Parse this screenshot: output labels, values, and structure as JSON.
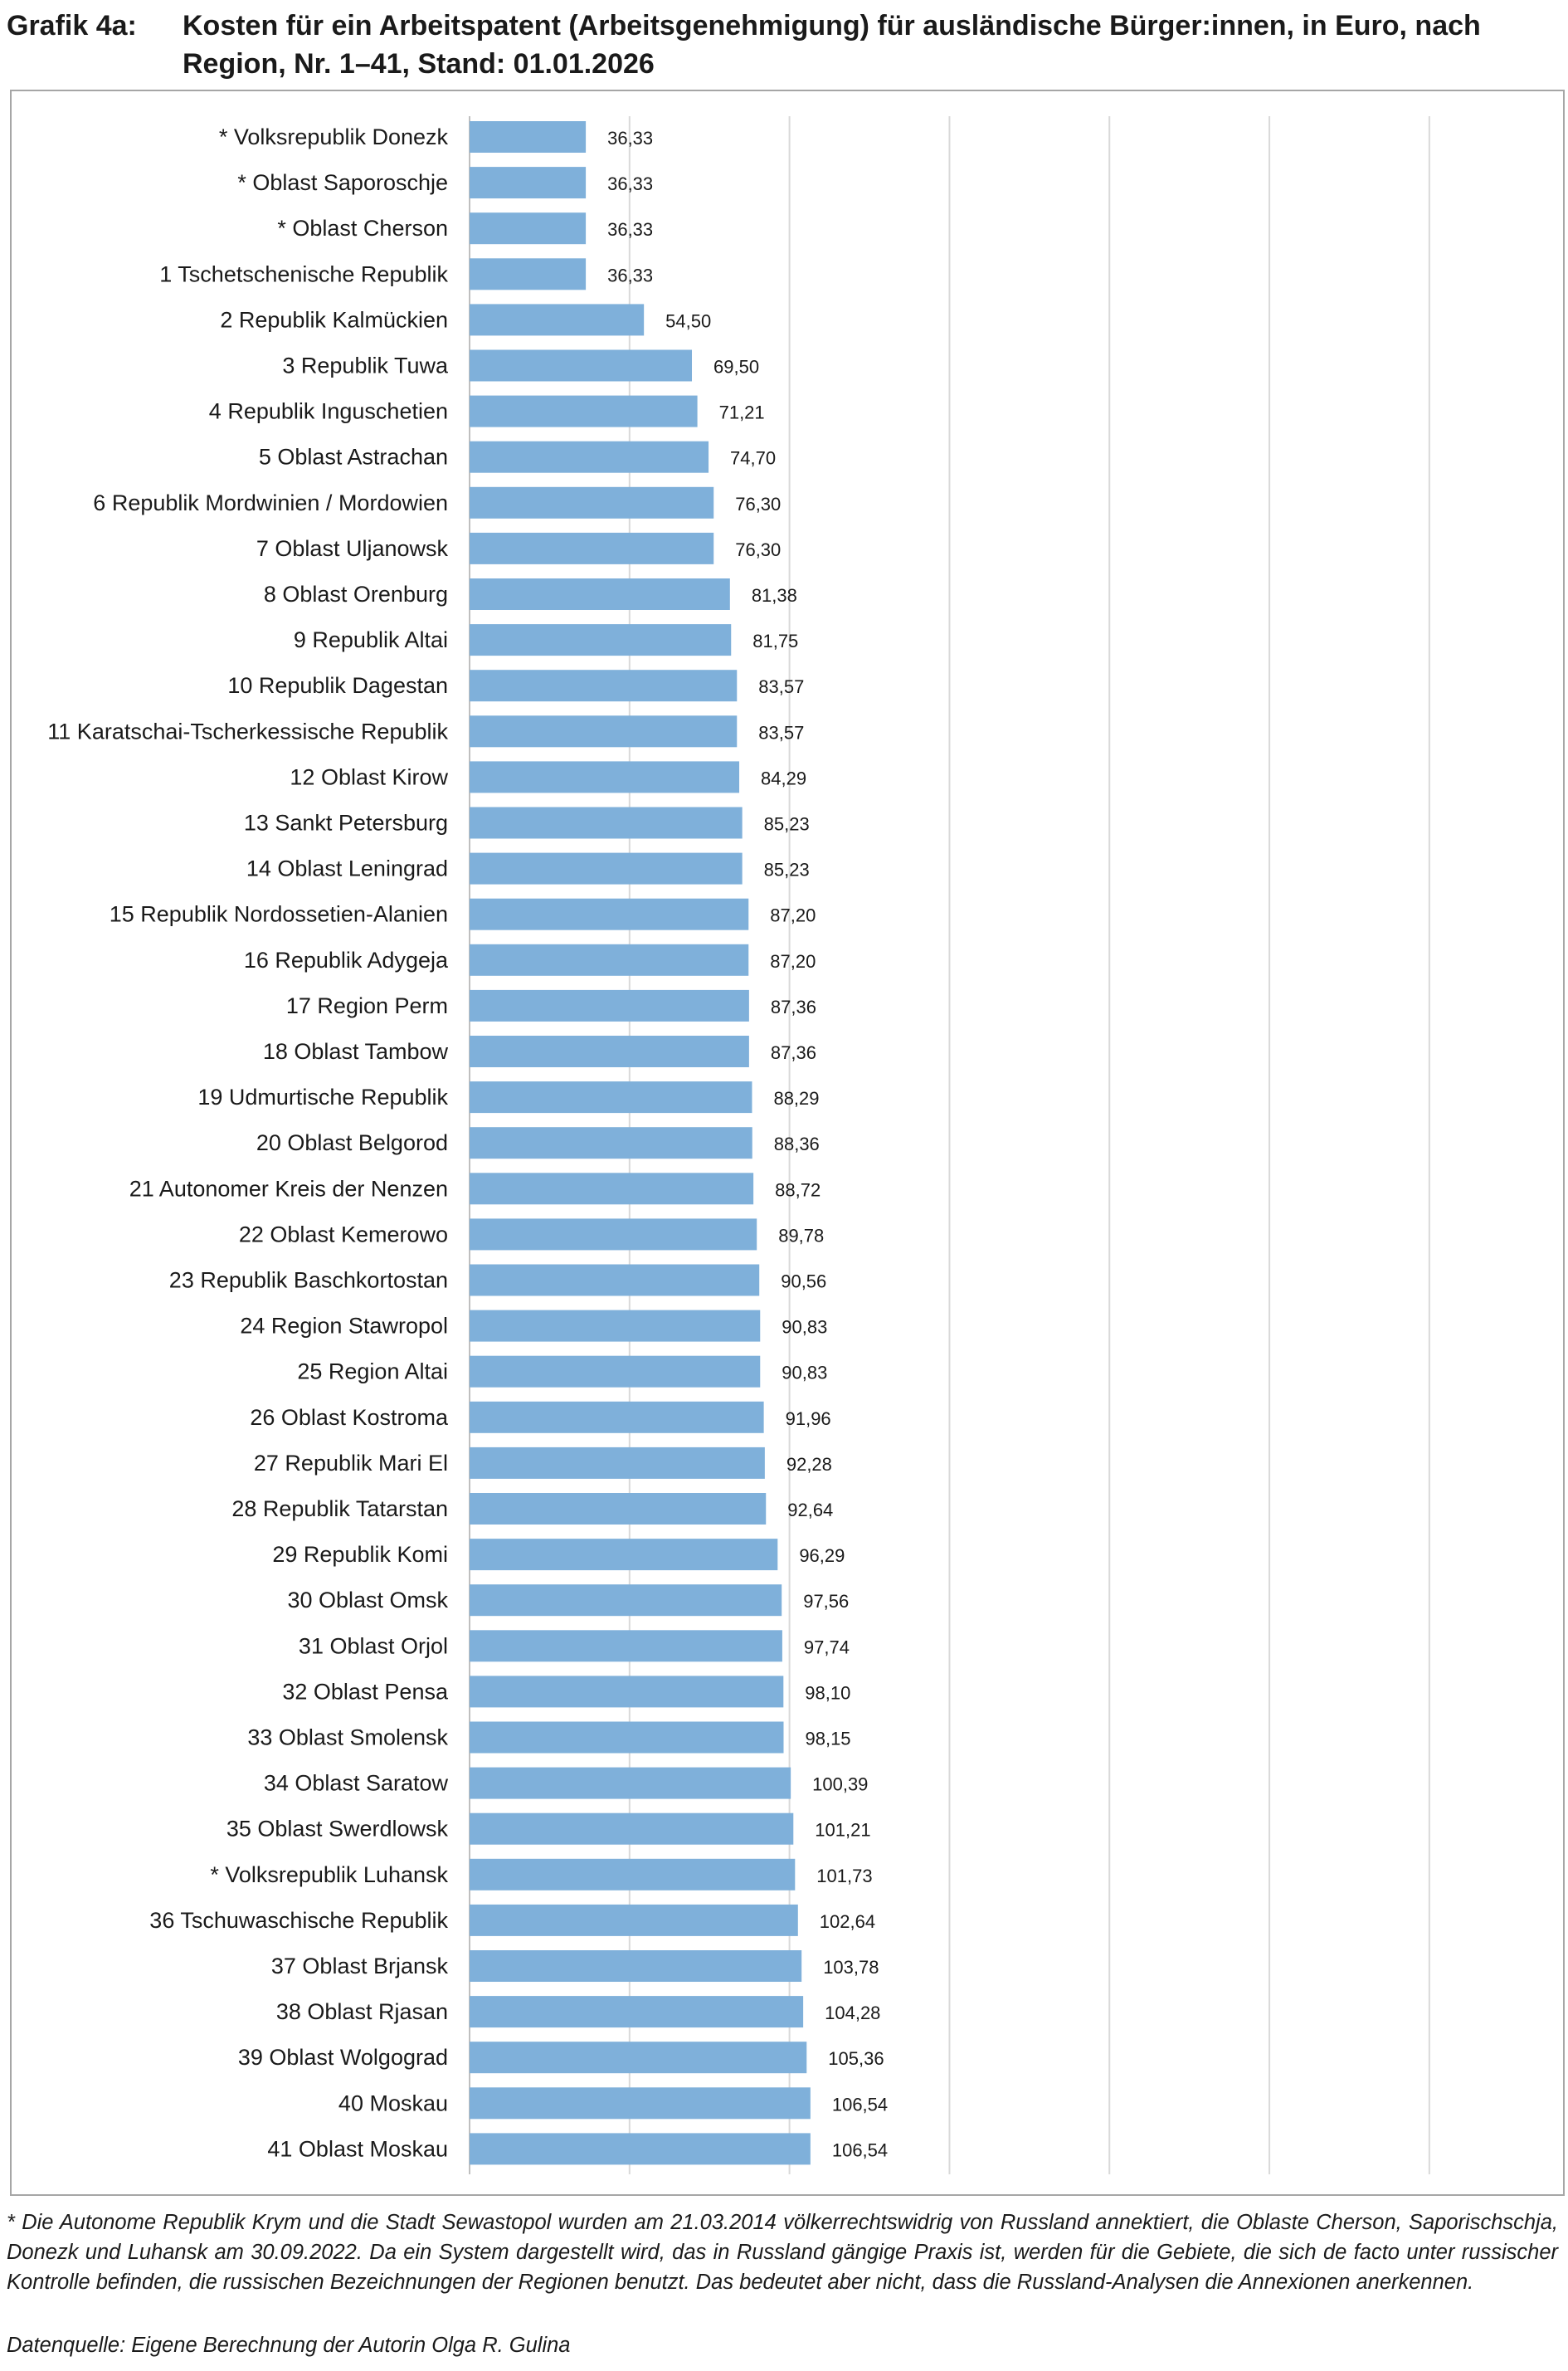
{
  "header": {
    "grafik_label": "Grafik 4a:",
    "title": "Kosten für ein Arbeitspatent (Arbeitsgenehmigung) für ausländische Bürger:innen, in Euro, nach Region, Nr. 1–41, Stand: 01.01.2026"
  },
  "chart_data": {
    "type": "bar",
    "orientation": "horizontal",
    "bar_color": "#7fb0da",
    "grid": true,
    "xlim": [
      0,
      320
    ],
    "categories": [
      "* Volksrepublik Donezk",
      "* Oblast Saporoschje",
      "* Oblast Cherson",
      "1 Tschetschenische Republik",
      "2 Republik Kalmückien",
      "3 Republik Tuwa",
      "4 Republik Inguschetien",
      "5 Oblast Astrachan",
      "6 Republik Mordwinien / Mordowien",
      "7 Oblast Uljanowsk",
      "8 Oblast Orenburg",
      "9 Republik Altai",
      "10 Republik Dagestan",
      "11 Karatschai-Tscherkessische Republik",
      "12 Oblast Kirow",
      "13 Sankt Petersburg",
      "14 Oblast Leningrad",
      "15 Republik Nordossetien-Alanien",
      "16 Republik Adygeja",
      "17 Region Perm",
      "18 Oblast Tambow",
      "19 Udmurtische Republik",
      "20 Oblast Belgorod",
      "21 Autonomer Kreis der Nenzen",
      "22 Oblast Kemerowo",
      "23 Republik Baschkortostan",
      "24 Region Stawropol",
      "25 Region Altai",
      "26 Oblast Kostroma",
      "27 Republik Mari El",
      "28 Republik Tatarstan",
      "29 Republik Komi",
      "30 Oblast Omsk",
      "31 Oblast Orjol",
      "32 Oblast Pensa",
      "33 Oblast Smolensk",
      "34 Oblast Saratow",
      "35 Oblast Swerdlowsk",
      "* Volksrepublik Luhansk",
      "36 Tschuwaschische Republik",
      "37 Oblast Brjansk",
      "38 Oblast Rjasan",
      "39 Oblast Wolgograd",
      "40 Moskau",
      "41 Oblast Moskau"
    ],
    "values": [
      36.33,
      36.33,
      36.33,
      36.33,
      54.5,
      69.5,
      71.21,
      74.7,
      76.3,
      76.3,
      81.38,
      81.75,
      83.57,
      83.57,
      84.29,
      85.23,
      85.23,
      87.2,
      87.2,
      87.36,
      87.36,
      88.29,
      88.36,
      88.72,
      89.78,
      90.56,
      90.83,
      90.83,
      91.96,
      92.28,
      92.64,
      96.29,
      97.56,
      97.74,
      98.1,
      98.15,
      100.39,
      101.21,
      101.73,
      102.64,
      103.78,
      104.28,
      105.36,
      106.54,
      106.54
    ],
    "value_labels": [
      "36,33",
      "36,33",
      "36,33",
      "36,33",
      "54,50",
      "69,50",
      "71,21",
      "74,70",
      "76,30",
      "76,30",
      "81,38",
      "81,75",
      "83,57",
      "83,57",
      "84,29",
      "85,23",
      "85,23",
      "87,20",
      "87,20",
      "87,36",
      "87,36",
      "88,29",
      "88,36",
      "88,72",
      "89,78",
      "90,56",
      "90,83",
      "90,83",
      "91,96",
      "92,28",
      "92,64",
      "96,29",
      "97,56",
      "97,74",
      "98,10",
      "98,15",
      "100,39",
      "101,21",
      "101,73",
      "102,64",
      "103,78",
      "104,28",
      "105,36",
      "106,54",
      "106,54"
    ]
  },
  "footnote": "* Die Autonome Republik Krym und die Stadt Sewastopol wurden am 21.03.2014 völkerrechtswidrig von Russland annektiert, die Oblaste Cherson, Saporischschja, Donezk und Luhansk am 30.09.2022. Da ein System dargestellt wird, das in Russland gängige Praxis ist, werden für die Gebiete, die sich de facto unter russischer Kontrolle befinden, die russischen Bezeichnungen der Regionen benutzt. Das bedeutet aber nicht, dass die Russland-Analysen die Annexionen anerkennen.",
  "source": "Datenquelle: Eigene Berechnung der Autorin Olga R. Gulina"
}
